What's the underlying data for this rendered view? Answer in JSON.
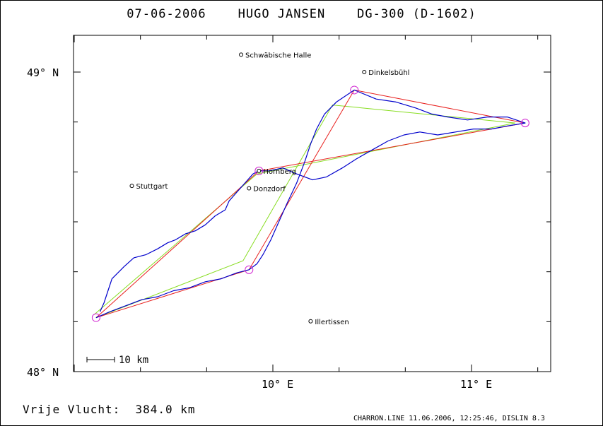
{
  "title": {
    "date": "07-06-2006",
    "pilot": "HUGO JANSEN",
    "glider": "DG-300 (D-1602)"
  },
  "map": {
    "lon_range": [
      9.0,
      11.4
    ],
    "lat_range": [
      48.0,
      49.12
    ],
    "lat_ticks": [
      {
        "value": 49.0,
        "label": "49° N"
      },
      {
        "value": 48.0,
        "label": "48° N"
      }
    ],
    "lon_ticks": [
      {
        "value": 10.0,
        "label": "10° E"
      },
      {
        "value": 11.0,
        "label": "11° E"
      }
    ],
    "cities": [
      {
        "name": "Schwäbische Halle",
        "lon": 9.84,
        "lat": 49.058
      },
      {
        "name": "Dinkelsbühl",
        "lon": 10.46,
        "lat": 49.0
      },
      {
        "name": "Stuttgart",
        "lon": 9.29,
        "lat": 48.62
      },
      {
        "name": "Hornberg",
        "lon": 9.93,
        "lat": 48.67
      },
      {
        "name": "Donzdorf",
        "lon": 9.88,
        "lat": 48.612
      },
      {
        "name": "Illertissen",
        "lon": 10.19,
        "lat": 48.168
      }
    ],
    "turnpoints": [
      {
        "lon": 9.11,
        "lat": 48.18
      },
      {
        "lon": 9.88,
        "lat": 48.34
      },
      {
        "lon": 10.41,
        "lat": 48.94
      },
      {
        "lon": 11.27,
        "lat": 48.83
      },
      {
        "lon": 9.93,
        "lat": 48.67
      }
    ],
    "task_route": [
      [
        9.11,
        48.18
      ],
      [
        9.88,
        48.34
      ],
      [
        10.41,
        48.94
      ],
      [
        11.27,
        48.83
      ],
      [
        9.93,
        48.67
      ],
      [
        9.11,
        48.18
      ]
    ],
    "optimized_route": [
      [
        9.11,
        48.18
      ],
      [
        9.85,
        48.37
      ],
      [
        10.3,
        48.89
      ],
      [
        11.22,
        48.83
      ],
      [
        9.92,
        48.66
      ],
      [
        9.1,
        48.19
      ]
    ],
    "flight_track": [
      [
        9.13,
        48.2
      ],
      [
        9.15,
        48.23
      ],
      [
        9.17,
        48.27
      ],
      [
        9.19,
        48.31
      ],
      [
        9.25,
        48.35
      ],
      [
        9.3,
        48.38
      ],
      [
        9.36,
        48.39
      ],
      [
        9.42,
        48.41
      ],
      [
        9.47,
        48.43
      ],
      [
        9.51,
        48.44
      ],
      [
        9.56,
        48.46
      ],
      [
        9.61,
        48.47
      ],
      [
        9.66,
        48.49
      ],
      [
        9.71,
        48.52
      ],
      [
        9.76,
        48.54
      ],
      [
        9.78,
        48.57
      ],
      [
        9.82,
        48.6
      ],
      [
        9.86,
        48.63
      ],
      [
        9.9,
        48.66
      ],
      [
        9.93,
        48.67
      ],
      [
        9.98,
        48.67
      ],
      [
        10.05,
        48.68
      ],
      [
        10.12,
        48.66
      ],
      [
        10.2,
        48.64
      ],
      [
        10.27,
        48.65
      ],
      [
        10.35,
        48.68
      ],
      [
        10.42,
        48.71
      ],
      [
        10.5,
        48.74
      ],
      [
        10.58,
        48.77
      ],
      [
        10.66,
        48.79
      ],
      [
        10.74,
        48.8
      ],
      [
        10.83,
        48.79
      ],
      [
        10.92,
        48.8
      ],
      [
        11.01,
        48.81
      ],
      [
        11.1,
        48.81
      ],
      [
        11.18,
        48.82
      ],
      [
        11.27,
        48.83
      ],
      [
        11.18,
        48.85
      ],
      [
        11.08,
        48.85
      ],
      [
        10.98,
        48.84
      ],
      [
        10.88,
        48.85
      ],
      [
        10.8,
        48.86
      ],
      [
        10.72,
        48.88
      ],
      [
        10.62,
        48.9
      ],
      [
        10.52,
        48.91
      ],
      [
        10.41,
        48.94
      ],
      [
        10.32,
        48.9
      ],
      [
        10.26,
        48.86
      ],
      [
        10.22,
        48.81
      ],
      [
        10.19,
        48.76
      ],
      [
        10.16,
        48.7
      ],
      [
        10.12,
        48.63
      ],
      [
        10.07,
        48.56
      ],
      [
        10.03,
        48.5
      ],
      [
        9.99,
        48.44
      ],
      [
        9.95,
        48.39
      ],
      [
        9.92,
        48.36
      ],
      [
        9.88,
        48.34
      ],
      [
        9.82,
        48.33
      ],
      [
        9.74,
        48.31
      ],
      [
        9.66,
        48.3
      ],
      [
        9.58,
        48.28
      ],
      [
        9.5,
        48.27
      ],
      [
        9.42,
        48.25
      ],
      [
        9.34,
        48.24
      ],
      [
        9.26,
        48.22
      ],
      [
        9.18,
        48.2
      ],
      [
        9.11,
        48.18
      ]
    ],
    "scale_bar_label": "10 km"
  },
  "footer": {
    "distance_label": "Vrije Vlucht:",
    "distance_value": "384.0 km",
    "software": "CHARRON.LINE 11.06.2006, 12:25:46, DISLIN 8.3"
  },
  "colors": {
    "track": "#0000cc",
    "task_route": "#e8201e",
    "optimized_route": "#88dd22",
    "turnpoint": "#d020d0",
    "frame": "#000000"
  }
}
